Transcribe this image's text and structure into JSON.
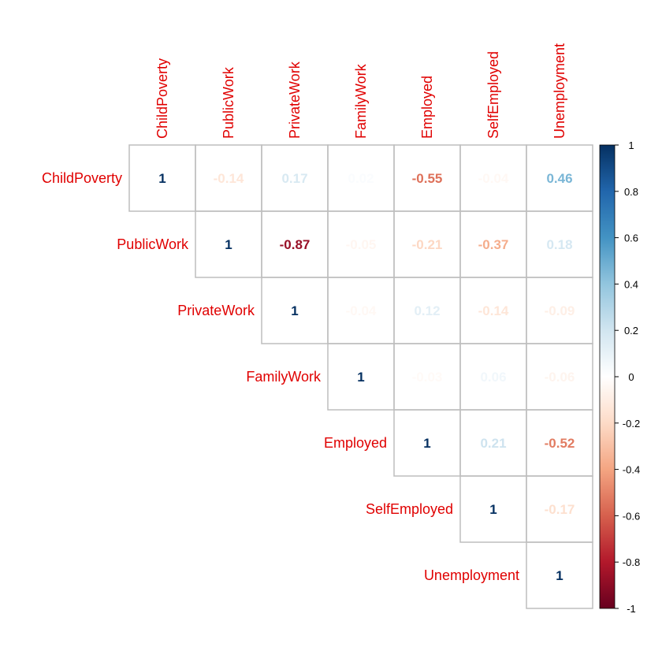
{
  "chart_data": {
    "type": "heatmap",
    "variables": [
      "ChildPoverty",
      "PublicWork",
      "PrivateWork",
      "FamilyWork",
      "Employed",
      "SelfEmployed",
      "Unemployment"
    ],
    "matrix": [
      [
        1,
        -0.14,
        0.17,
        0.02,
        -0.55,
        -0.04,
        0.46
      ],
      [
        -0.14,
        1,
        -0.87,
        -0.05,
        -0.21,
        -0.37,
        0.18
      ],
      [
        0.17,
        -0.87,
        1,
        -0.04,
        0.12,
        -0.14,
        -0.09
      ],
      [
        0.02,
        -0.05,
        -0.04,
        1,
        -0.03,
        0.06,
        -0.06
      ],
      [
        -0.55,
        -0.21,
        0.12,
        -0.03,
        1,
        0.21,
        -0.52
      ],
      [
        -0.04,
        -0.37,
        -0.14,
        0.06,
        0.21,
        1,
        -0.17
      ],
      [
        0.46,
        0.18,
        -0.09,
        -0.06,
        -0.52,
        -0.17,
        1
      ]
    ],
    "display": "upper-triangle-numbers",
    "value_range": [
      -1,
      1
    ],
    "colorbar_ticks": [
      "1",
      "0.8",
      "0.6",
      "0.4",
      "0.2",
      "0",
      "-0.2",
      "-0.4",
      "-0.6",
      "-0.8",
      "-1"
    ],
    "colorscale": [
      "#67001F",
      "#B2182B",
      "#D6604D",
      "#F4A582",
      "#FDDBC7",
      "#FFFFFF",
      "#D1E5F0",
      "#92C5DE",
      "#4393C3",
      "#2166AC",
      "#053061"
    ],
    "label_color": "#e00000",
    "grid_color": "#bebebe",
    "legend_position": "right",
    "title": ""
  }
}
